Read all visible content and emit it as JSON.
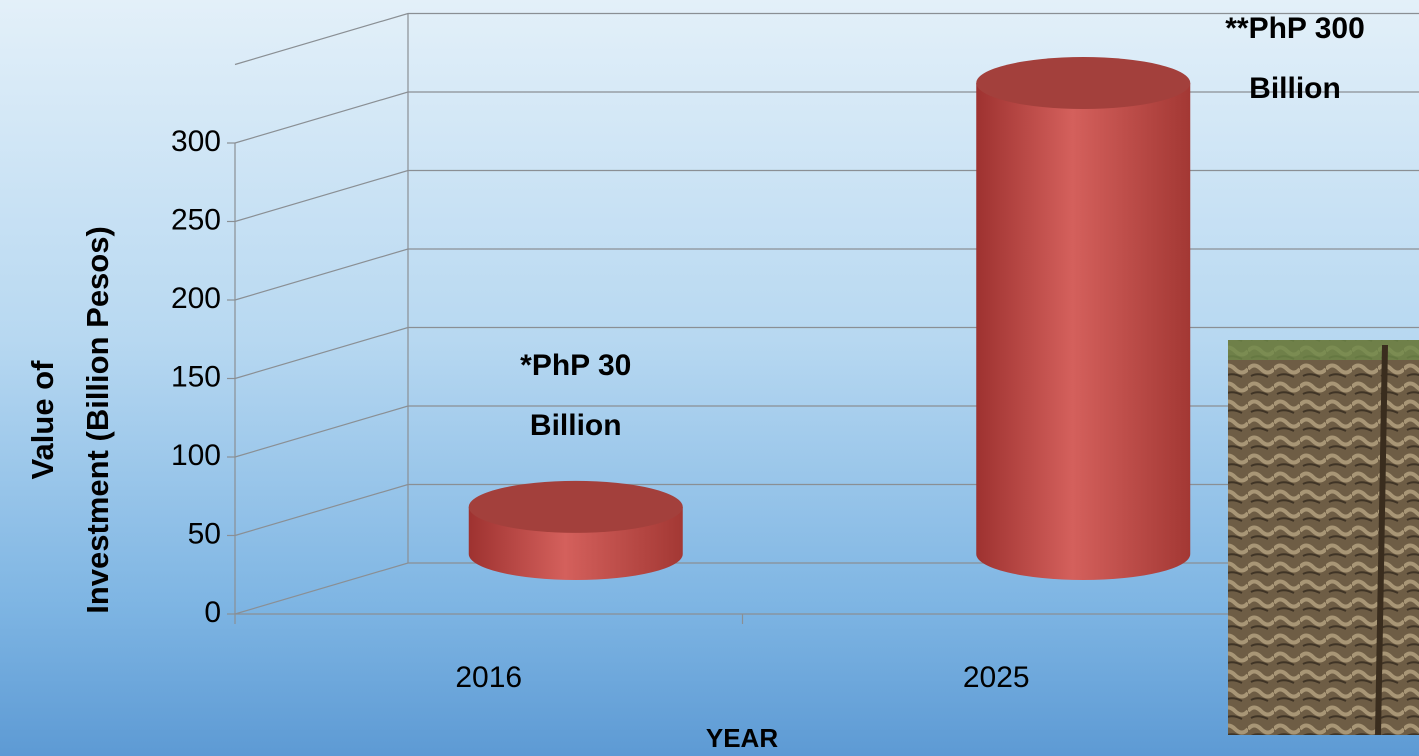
{
  "chart_data": {
    "type": "cylinder",
    "categories": [
      "2016",
      "2025"
    ],
    "values": [
      30,
      300
    ],
    "value_labels": [
      "*PhP 30 Billion",
      "**PhP 300 Billion"
    ],
    "color": "#c9504d",
    "ylim": [
      0,
      350
    ],
    "yticks": [
      0,
      50,
      100,
      150,
      200,
      250,
      300
    ],
    "ylabel": [
      "Value of",
      "Investment (Billion Pesos)"
    ],
    "xlabel": "YEAR",
    "grid": true
  }
}
